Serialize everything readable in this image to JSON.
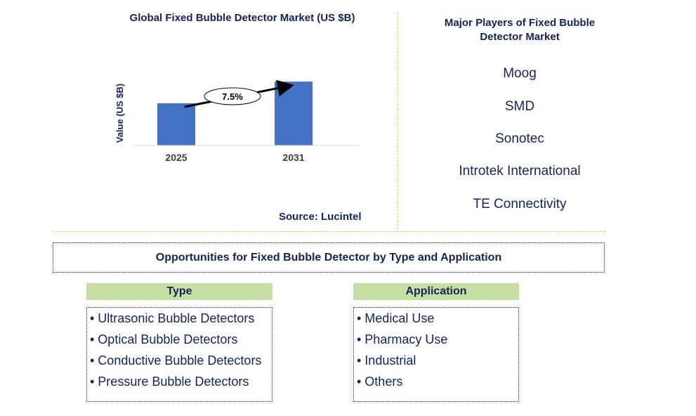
{
  "chart_data": {
    "type": "bar",
    "title": "Global Fixed Bubble Detector Market (US $B)",
    "categories": [
      "2025",
      "2031"
    ],
    "values": [
      0.66,
      1.0
    ],
    "ylabel": "Value (US $B)",
    "xlabel": "",
    "ylim": [
      0,
      1.1
    ],
    "grid": false,
    "annotation": {
      "type": "growth-arrow",
      "label": "7.5%"
    },
    "bar_color": "#4472c4"
  },
  "source": "Source: Lucintel",
  "players": {
    "title": "Major Players of Fixed Bubble Detector Market",
    "items": [
      "Moog",
      "SMD",
      "Sonotec",
      "Introtek International",
      "TE Connectivity"
    ]
  },
  "opportunities": {
    "title": "Opportunities for Fixed Bubble Detector by Type and Application",
    "type": {
      "header": "Type",
      "items": [
        "• Ultrasonic Bubble Detectors",
        "• Optical Bubble Detectors",
        "• Conductive Bubble Detectors",
        "• Pressure Bubble Detectors"
      ]
    },
    "application": {
      "header": "Application",
      "items": [
        "• Medical Use",
        "• Pharmacy Use",
        "• Industrial",
        "• Others"
      ]
    }
  },
  "colors": {
    "text": "#14235a",
    "bar": "#4472c4",
    "header_bg": "#c6e0a4",
    "divider": "#e8c36a"
  }
}
